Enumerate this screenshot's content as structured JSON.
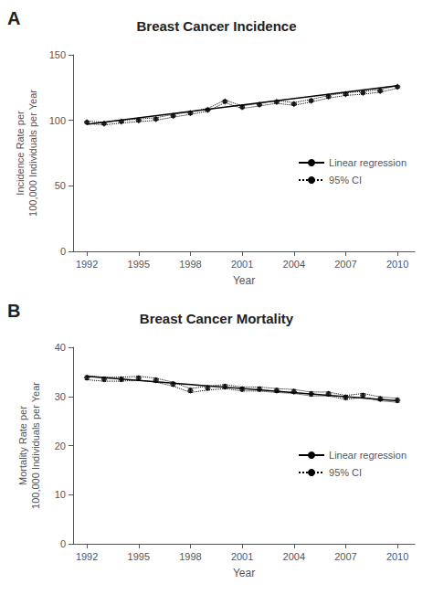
{
  "chart_data": [
    {
      "type": "line",
      "title": "Breast Cancer Incidence",
      "annotations": [
        "A"
      ],
      "xlabel": "Year",
      "ylabel": "Incidence Rate per\n100,000 Individuals per Year",
      "x": [
        1992,
        1993,
        1994,
        1995,
        1996,
        1997,
        1998,
        1999,
        2000,
        2001,
        2002,
        2003,
        2004,
        2005,
        2006,
        2007,
        2008,
        2009,
        2010
      ],
      "series": [
        {
          "name": "Linear regression",
          "type": "line",
          "line_style": "solid",
          "color": "#000000",
          "x": [
            1992,
            2010
          ],
          "values": [
            97.0,
            126.5
          ]
        },
        {
          "name": "95% CI",
          "type": "line",
          "line_style": "dotted",
          "color": "#000000",
          "upper": [
            99.5,
            98.5,
            100.0,
            101.0,
            102.0,
            104.5,
            106.5,
            109.0,
            115.5,
            111.0,
            113.0,
            115.0,
            113.5,
            116.0,
            119.0,
            121.0,
            122.0,
            123.5,
            126.5
          ],
          "lower": [
            97.5,
            96.5,
            98.0,
            99.0,
            100.0,
            102.5,
            104.5,
            107.0,
            113.5,
            109.0,
            111.0,
            113.0,
            111.5,
            114.0,
            117.0,
            119.0,
            120.0,
            121.5,
            124.5
          ]
        },
        {
          "type": "scatter",
          "marker": "diamond",
          "color": "#000000",
          "values": [
            98.5,
            97.5,
            99.0,
            100.0,
            101.0,
            103.5,
            105.5,
            108.0,
            114.5,
            110.0,
            112.0,
            114.0,
            112.5,
            115.0,
            118.0,
            120.0,
            121.0,
            122.5,
            125.5
          ],
          "error_high": [
            99.5,
            98.5,
            100.0,
            101.0,
            102.0,
            104.5,
            106.5,
            109.0,
            115.5,
            111.0,
            113.0,
            115.0,
            113.5,
            116.0,
            119.0,
            121.0,
            122.0,
            123.5,
            126.5
          ],
          "error_low": [
            97.5,
            96.5,
            98.0,
            99.0,
            100.0,
            102.5,
            104.5,
            107.0,
            113.5,
            109.0,
            111.0,
            113.0,
            111.5,
            114.0,
            117.0,
            119.0,
            120.0,
            121.5,
            124.5
          ]
        }
      ],
      "xlim": [
        1991.2,
        2011.0
      ],
      "xticks": [
        1992,
        1995,
        1998,
        2001,
        2004,
        2007,
        2010
      ],
      "ylim": [
        0,
        150
      ],
      "yticks": [
        0,
        50,
        100,
        150
      ],
      "grid": false,
      "legend": "right"
    },
    {
      "type": "line",
      "title": "Breast Cancer Mortality",
      "annotations": [
        "B"
      ],
      "xlabel": "Year",
      "ylabel": "Mortality Rate per\n100,000 Individuals per Year",
      "x": [
        1992,
        1993,
        1994,
        1995,
        1996,
        1997,
        1998,
        1999,
        2000,
        2001,
        2002,
        2003,
        2004,
        2005,
        2006,
        2007,
        2008,
        2009,
        2010
      ],
      "series": [
        {
          "name": "Linear regression",
          "type": "line",
          "line_style": "solid",
          "color": "#000000",
          "x": [
            1992,
            2010
          ],
          "values": [
            34.1,
            29.1
          ]
        },
        {
          "name": "95% CI",
          "type": "line",
          "line_style": "dotted",
          "color": "#000000",
          "upper": [
            34.2,
            33.9,
            33.9,
            34.1,
            33.7,
            32.9,
            31.6,
            32.1,
            32.4,
            31.9,
            31.9,
            31.6,
            31.4,
            30.9,
            30.9,
            30.2,
            30.6,
            29.9,
            29.6
          ],
          "lower": [
            33.4,
            33.1,
            33.1,
            33.3,
            32.9,
            32.1,
            30.8,
            31.3,
            31.6,
            31.1,
            31.1,
            30.8,
            30.6,
            30.1,
            30.1,
            29.4,
            29.8,
            29.1,
            28.8
          ]
        },
        {
          "type": "scatter",
          "marker": "diamond",
          "color": "#000000",
          "values": [
            33.8,
            33.5,
            33.5,
            33.7,
            33.3,
            32.5,
            31.2,
            31.7,
            32.0,
            31.5,
            31.5,
            31.2,
            31.0,
            30.5,
            30.5,
            29.8,
            30.2,
            29.5,
            29.2
          ],
          "error_high": [
            34.2,
            33.9,
            33.9,
            34.1,
            33.7,
            32.9,
            31.6,
            32.1,
            32.4,
            31.9,
            31.9,
            31.6,
            31.4,
            30.9,
            30.9,
            30.2,
            30.6,
            29.9,
            29.6
          ],
          "error_low": [
            33.4,
            33.1,
            33.1,
            33.3,
            32.9,
            32.1,
            30.8,
            31.3,
            31.6,
            31.1,
            31.1,
            30.8,
            30.6,
            30.1,
            30.1,
            29.4,
            29.8,
            29.1,
            28.8
          ]
        }
      ],
      "xlim": [
        1991.2,
        2011.0
      ],
      "xticks": [
        1992,
        1995,
        1998,
        2001,
        2004,
        2007,
        2010
      ],
      "ylim": [
        0,
        40
      ],
      "yticks": [
        0,
        10,
        20,
        30,
        40
      ],
      "grid": false,
      "legend": "right"
    }
  ]
}
